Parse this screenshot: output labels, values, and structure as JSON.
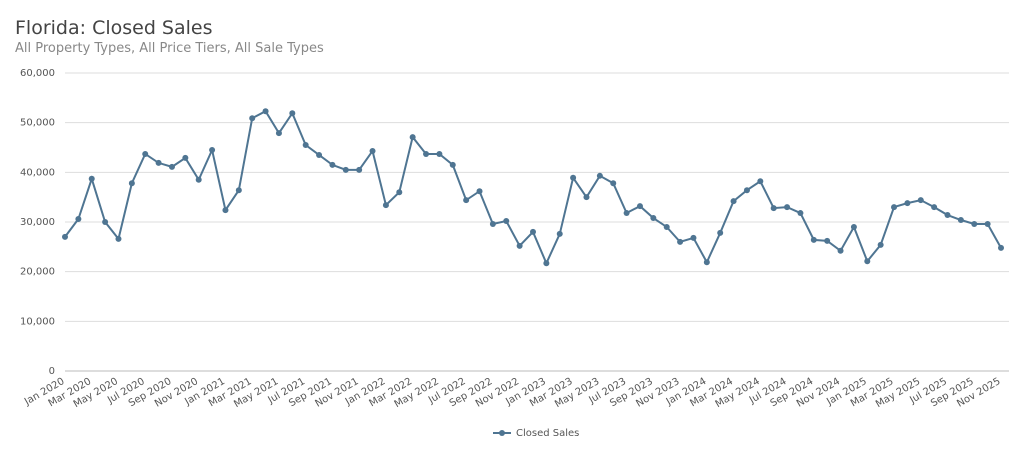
{
  "chart_data": {
    "type": "line",
    "title": "Florida: Closed Sales",
    "subtitle": "All Property Types, All Price Tiers, All Sale Types",
    "categories": [
      "Jan 2020",
      null,
      "Mar 2020",
      null,
      "May 2020",
      null,
      "Jul 2020",
      null,
      "Sep 2020",
      null,
      "Nov 2020",
      null,
      "Jan 2021",
      null,
      "Mar 2021",
      null,
      "May 2021",
      null,
      "Jul 2021",
      null,
      "Sep 2021",
      null,
      "Nov 2021",
      null,
      "Jan 2022",
      null,
      "Mar 2022",
      null,
      "May 2022",
      null,
      "Jul 2022",
      null,
      "Sep 2022",
      null,
      "Nov 2022",
      null,
      "Jan 2023",
      null,
      "Mar 2023",
      null,
      "May 2023",
      null,
      "Jul 2023",
      null,
      "Sep 2023",
      null,
      "Nov 2023",
      null,
      "Jan 2024",
      null,
      "Mar 2024",
      null,
      "May 2024",
      null,
      "Jul 2024",
      null,
      "Sep 2024",
      null,
      "Nov 2024",
      null,
      "Jan 2025",
      null,
      "Mar 2025",
      null,
      "May 2025",
      null,
      "Jul 2025",
      null,
      "Sep 2025",
      null,
      "Nov 2025"
    ],
    "series": [
      {
        "name": "Closed Sales",
        "color": "#4f7592",
        "values": [
          27000,
          30600,
          38700,
          30000,
          26600,
          37800,
          43700,
          41900,
          41100,
          42900,
          38500,
          44500,
          32400,
          36400,
          50900,
          52300,
          47900,
          51900,
          45500,
          43500,
          41500,
          40500,
          40500,
          44300,
          33400,
          36000,
          47100,
          43700,
          43700,
          41500,
          34400,
          36200,
          29600,
          30200,
          25200,
          28000,
          21700,
          27600,
          38900,
          35000,
          39300,
          37800,
          31800,
          33200,
          30800,
          29000,
          26000,
          26800,
          21900,
          27800,
          34200,
          36400,
          38200,
          32800,
          33000,
          31800,
          26400,
          26200,
          24200,
          29000,
          22100,
          25400,
          33000,
          33800,
          34400,
          33000,
          31400,
          30400,
          29600,
          29600,
          24800
        ]
      }
    ],
    "ylim": [
      0,
      60000
    ],
    "yticks": [
      0,
      {
        "value": 10000,
        "label": "10,000"
      },
      {
        "value": 20000,
        "label": "20,000"
      },
      {
        "value": 30000,
        "label": "30,000"
      },
      {
        "value": 40000,
        "label": "40,000"
      },
      {
        "value": 50000,
        "label": "50,000"
      },
      {
        "value": 60000,
        "label": "60,000"
      }
    ],
    "grid": true,
    "legend": "bottom"
  }
}
